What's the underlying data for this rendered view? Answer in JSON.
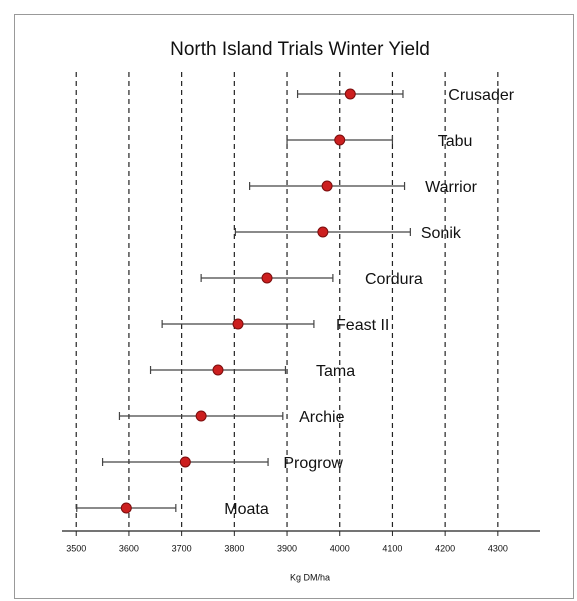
{
  "chart_data": {
    "type": "dot_errorbar",
    "title": "North Island Trials  Winter Yield",
    "x_label": "Kg DM/ha",
    "categories": [
      "Crusader",
      "Tabu",
      "Warrior",
      "Sonik",
      "Cordura",
      "Feast II",
      "Tama",
      "Archie",
      "Progrow",
      "Moata"
    ],
    "values": [
      4020,
      4000,
      3976,
      3968,
      3862,
      3807,
      3769,
      3737,
      3707,
      3595
    ],
    "errors": [
      100,
      100,
      147,
      166,
      125,
      144,
      128,
      155,
      157,
      94
    ],
    "color": "#cc1f1f",
    "xlim": [
      3473,
      4380
    ],
    "xticks": [
      3500,
      3600,
      3700,
      3800,
      3900,
      4000,
      4100,
      4200,
      4300
    ],
    "grid": true
  }
}
